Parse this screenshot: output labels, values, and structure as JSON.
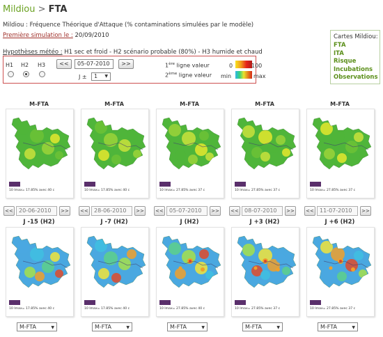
{
  "header": {
    "crumb": "Mildiou",
    "separator": " > ",
    "page": "FTA"
  },
  "subtitle": "Mildiou : Fréquence Théorique d'Attaque (% contaminations simulées par le modèle)",
  "first_sim": {
    "label": "Première simulation le :",
    "value": " 20/09/2010"
  },
  "hypotheses": {
    "label": "Hypothèses météo :",
    "text": " H1 sec et froid - H2 scénario probable (80%) - H3 humide et chaud"
  },
  "sidebox": {
    "heading": "Cartes Mildiou:",
    "links": [
      "FTA",
      "ITA",
      "Risque",
      "Incubations",
      "Observations"
    ]
  },
  "controls": {
    "h_labels": [
      "H1",
      "H2",
      "H3"
    ],
    "selected_h": "H2",
    "prev_label": "<<",
    "next_label": ">>",
    "date_value": "05-07-2010",
    "j_label": "J ±",
    "j_value": "1",
    "legend": {
      "line1_prefix": "1",
      "line1_sup": "ère",
      "line1_text": " ligne   valeur",
      "line1_min": "0",
      "line1_max": "100",
      "line2_prefix": "2",
      "line2_sup": "ème",
      "line2_text": " ligne   valeur",
      "line2_min": "min",
      "line2_max": "max",
      "colors_first": [
        "#f7e31c",
        "#f39a1b",
        "#e5231b",
        "#b21c17"
      ],
      "colors_second": [
        "#2fb7e8",
        "#37d07a",
        "#e8e32c",
        "#e5821b",
        "#d42a1b"
      ]
    }
  },
  "columns": [
    {
      "top_title": "M-FTA",
      "top_note": "10 Imax= 17.85% avec 40 c",
      "date": "20-06-2010",
      "j_title": "J -15 (H2)",
      "bottom_note": "10 Imax= 17.85% avec 40 c",
      "select": "M-FTA"
    },
    {
      "top_title": "M-FTA",
      "top_note": "10 Imax= 17.85% avec 40 c",
      "date": "28-06-2010",
      "j_title": "J -7 (H2)",
      "bottom_note": "10 Imax= 17.85% avec 40 c",
      "select": "M-FTA"
    },
    {
      "top_title": "M-FTA",
      "top_note": "10 Imax= 27.85% avec 37 c",
      "date": "05-07-2010",
      "j_title": "J (H2)",
      "bottom_note": "10 Imax= 27.85% avec 40 c",
      "select": "M-FTA"
    },
    {
      "top_title": "M-FTA",
      "top_note": "10 Imax= 27.85% avec 37 c",
      "date": "08-07-2010",
      "j_title": "J +3 (H2)",
      "bottom_note": "10 Imax= 27.85% avec 37 c",
      "select": "M-FTA"
    },
    {
      "top_title": "M-FTA",
      "top_note": "10 Imax= 27.85% avec 37 c",
      "date": "11-07-2010",
      "j_title": "J +6 (H2)",
      "bottom_note": "10 Imax= 27.85% avec 37 c",
      "select": "M-FTA"
    }
  ],
  "nav": {
    "prev": "<<",
    "next": ">>"
  },
  "map_colors": {
    "top": [
      "#4fb53a",
      "#6cc236",
      "#9bd43a",
      "#c9e23c",
      "#e4e72e"
    ],
    "bottom": [
      "#4aa8e0",
      "#3fbfe0",
      "#5dd08a",
      "#a6e04a",
      "#f1e43a",
      "#f0a02a",
      "#e04a2a"
    ]
  }
}
